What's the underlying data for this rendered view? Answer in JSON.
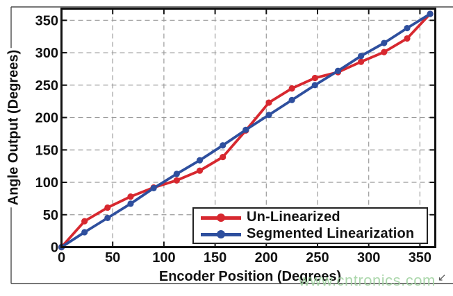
{
  "figure": {
    "x_label": "Encoder Position (Degrees)",
    "y_label": "Angle Output (Degrees)"
  },
  "page": {
    "watermark": "www.cntronics.com"
  },
  "icons": {
    "cursor_glyph": "↙"
  },
  "colors": {
    "red_series": "#d7282f",
    "blue_series": "#2e4f9e",
    "grid": "#9b9b9b",
    "axis": "#111111",
    "frame": "#4a4a4a",
    "watermark": "#a3d3a3",
    "background": "#ffffff"
  },
  "chart_data": {
    "type": "line",
    "title": "",
    "xlabel": "Encoder Position (Degrees)",
    "ylabel": "Angle Output (Degrees)",
    "xlim": [
      0,
      365
    ],
    "ylim": [
      0,
      368
    ],
    "x_ticks": [
      0,
      50,
      100,
      150,
      200,
      250,
      300,
      350
    ],
    "y_ticks": [
      0,
      50,
      100,
      150,
      200,
      250,
      300,
      350
    ],
    "grid": true,
    "grid_style": "dashed",
    "legend_position": "inside lower-right",
    "x": [
      0,
      22.5,
      45,
      67.5,
      90,
      112.5,
      135,
      157.5,
      180,
      202.5,
      225,
      247.5,
      270,
      292.5,
      315,
      337.5,
      360
    ],
    "series": [
      {
        "name": "Un-Linearized",
        "color": "#d7282f",
        "marker": "circle",
        "values": [
          0,
          40,
          61,
          78,
          92,
          103,
          118,
          139,
          180,
          223,
          245,
          261,
          270,
          286,
          301,
          322,
          360
        ]
      },
      {
        "name": "Segmented Linearization",
        "color": "#2e4f9e",
        "marker": "circle",
        "values": [
          0,
          23,
          45,
          67,
          91,
          113,
          134,
          157,
          181,
          204,
          227,
          250,
          272,
          295,
          315,
          338,
          360
        ]
      }
    ]
  }
}
